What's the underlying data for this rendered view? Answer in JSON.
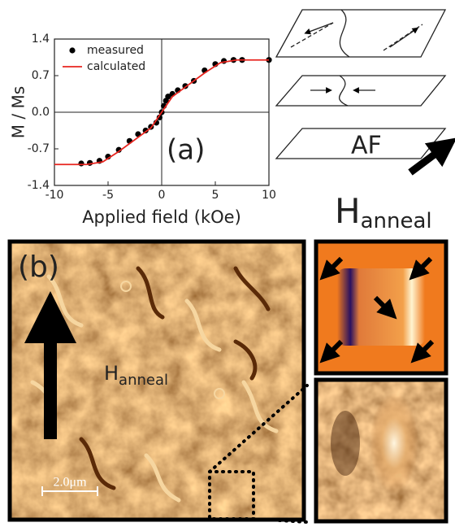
{
  "chart_data": {
    "type": "line",
    "ylabel": "M / Ms",
    "xlabel": "Applied field (kOe)",
    "xlim": [
      -10,
      10
    ],
    "xticks": [
      -10,
      -5,
      0,
      5,
      10
    ],
    "ylim": [
      -1.4,
      1.4
    ],
    "yticks": [
      1.4,
      0.7,
      {
        "value": 0,
        "label": "0.0"
      },
      -0.7,
      -1.4
    ],
    "legend": "upper left",
    "series": [
      {
        "name": "measured",
        "color": "#000000",
        "marker": "circle",
        "x": [
          -7.5,
          -6.7,
          -5.8,
          -5,
          -4,
          -3,
          -2.2,
          -1.5,
          -1,
          -0.5,
          -0.2,
          0,
          0.2,
          0.4,
          0.6,
          1,
          1.5,
          2.2,
          3,
          4,
          5,
          5.8,
          6.7,
          7.5,
          10
        ],
        "values": [
          -0.98,
          -0.97,
          -0.93,
          -0.85,
          -0.72,
          -0.55,
          -0.42,
          -0.35,
          -0.28,
          -0.2,
          -0.1,
          0,
          0.12,
          0.22,
          0.3,
          0.35,
          0.42,
          0.5,
          0.6,
          0.8,
          0.92,
          0.98,
          1.0,
          1.0,
          1.0
        ]
      },
      {
        "name": "calculated",
        "color": "#e8251f",
        "marker": "none",
        "x": [
          -10,
          -7,
          -5.5,
          -4,
          -2,
          -1,
          0,
          1,
          2,
          4,
          5.5,
          7,
          10
        ],
        "values": [
          -1,
          -1,
          -0.95,
          -0.75,
          -0.45,
          -0.3,
          0,
          0.3,
          0.45,
          0.75,
          0.95,
          1,
          1
        ]
      }
    ]
  },
  "panel_a_label": "(a)",
  "diagram": {
    "layer_label": "AF",
    "field_label": {
      "main": "H",
      "sub": "anneal"
    }
  },
  "panel_b": {
    "label": "(b)",
    "field_label": {
      "main": "H",
      "sub": "anneal"
    },
    "scale_bar": "2.0μm"
  }
}
